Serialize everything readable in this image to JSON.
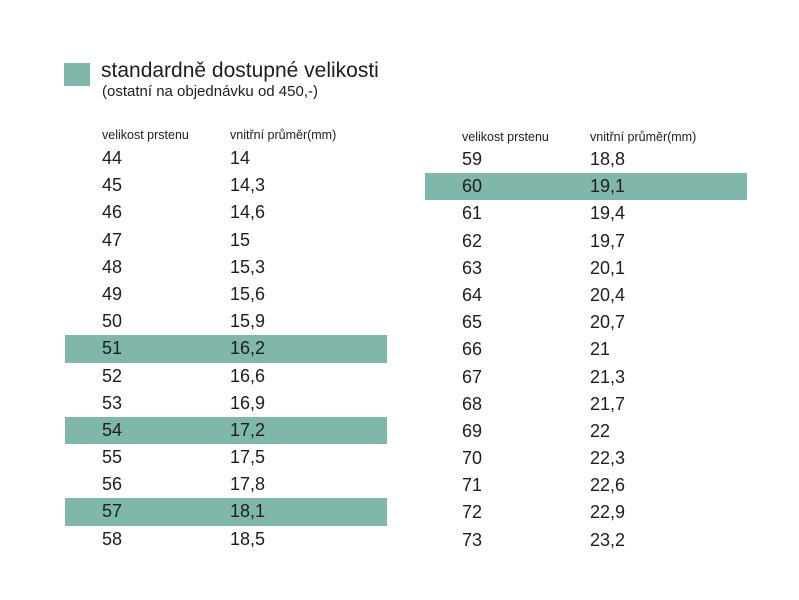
{
  "legend": {
    "color": "#7fb7aa",
    "title": "standardně dostupné velikosti",
    "subtitle": "(ostatní na objednávku od 450,-)"
  },
  "table_left": {
    "header_size": "velikost prstenu",
    "header_diameter": "vnitřní průměr(mm)",
    "rows": [
      {
        "size": "44",
        "diameter": "14",
        "highlighted": false
      },
      {
        "size": "45",
        "diameter": "14,3",
        "highlighted": false
      },
      {
        "size": "46",
        "diameter": "14,6",
        "highlighted": false
      },
      {
        "size": "47",
        "diameter": "15",
        "highlighted": false
      },
      {
        "size": "48",
        "diameter": "15,3",
        "highlighted": false
      },
      {
        "size": "49",
        "diameter": "15,6",
        "highlighted": false
      },
      {
        "size": "50",
        "diameter": "15,9",
        "highlighted": false
      },
      {
        "size": "51",
        "diameter": "16,2",
        "highlighted": true
      },
      {
        "size": "52",
        "diameter": "16,6",
        "highlighted": false
      },
      {
        "size": "53",
        "diameter": "16,9",
        "highlighted": false
      },
      {
        "size": "54",
        "diameter": "17,2",
        "highlighted": true
      },
      {
        "size": "55",
        "diameter": "17,5",
        "highlighted": false
      },
      {
        "size": "56",
        "diameter": "17,8",
        "highlighted": false
      },
      {
        "size": "57",
        "diameter": "18,1",
        "highlighted": true
      },
      {
        "size": "58",
        "diameter": "18,5",
        "highlighted": false
      }
    ]
  },
  "table_right": {
    "header_size": "velikost prstenu",
    "header_diameter": "vnitřní průměr(mm)",
    "rows": [
      {
        "size": "59",
        "diameter": "18,8",
        "highlighted": false
      },
      {
        "size": "60",
        "diameter": "19,1",
        "highlighted": true
      },
      {
        "size": "61",
        "diameter": "19,4",
        "highlighted": false
      },
      {
        "size": "62",
        "diameter": "19,7",
        "highlighted": false
      },
      {
        "size": "63",
        "diameter": "20,1",
        "highlighted": false
      },
      {
        "size": "64",
        "diameter": "20,4",
        "highlighted": false
      },
      {
        "size": "65",
        "diameter": "20,7",
        "highlighted": false
      },
      {
        "size": "66",
        "diameter": "21",
        "highlighted": false
      },
      {
        "size": "67",
        "diameter": "21,3",
        "highlighted": false
      },
      {
        "size": "68",
        "diameter": "21,7",
        "highlighted": false
      },
      {
        "size": "69",
        "diameter": "22",
        "highlighted": false
      },
      {
        "size": "70",
        "diameter": "22,3",
        "highlighted": false
      },
      {
        "size": "71",
        "diameter": "22,6",
        "highlighted": false
      },
      {
        "size": "72",
        "diameter": "22,9",
        "highlighted": false
      },
      {
        "size": "73",
        "diameter": "23,2",
        "highlighted": false
      }
    ]
  }
}
